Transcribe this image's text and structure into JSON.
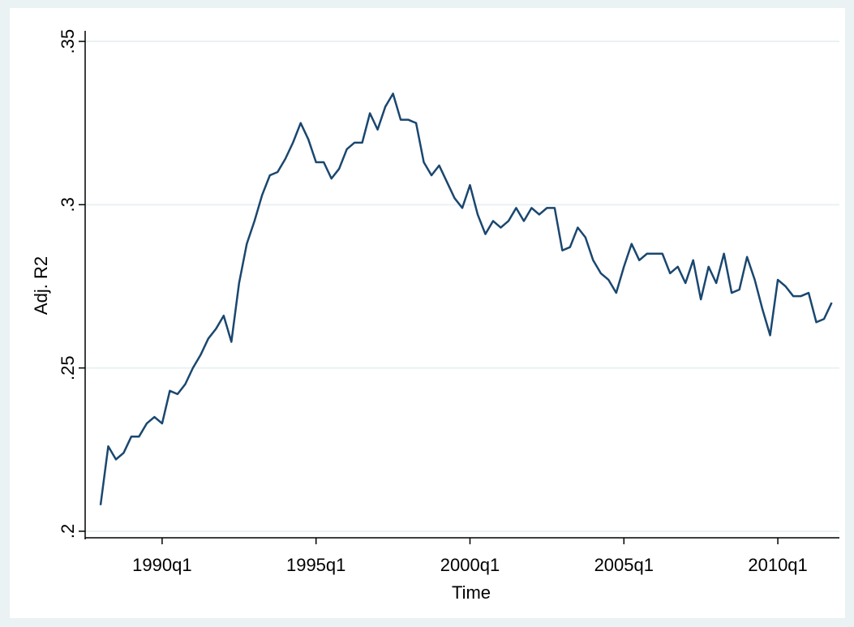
{
  "chart_data": {
    "type": "line",
    "x_label": "Time",
    "y_label": "Adj. R2",
    "x": [
      "1988q1",
      "1988q2",
      "1988q3",
      "1988q4",
      "1989q1",
      "1989q2",
      "1989q3",
      "1989q4",
      "1990q1",
      "1990q2",
      "1990q3",
      "1990q4",
      "1991q1",
      "1991q2",
      "1991q3",
      "1991q4",
      "1992q1",
      "1992q2",
      "1992q3",
      "1992q4",
      "1993q1",
      "1993q2",
      "1993q3",
      "1993q4",
      "1994q1",
      "1994q2",
      "1994q3",
      "1994q4",
      "1995q1",
      "1995q2",
      "1995q3",
      "1995q4",
      "1996q1",
      "1996q2",
      "1996q3",
      "1996q4",
      "1997q1",
      "1997q2",
      "1997q3",
      "1997q4",
      "1998q1",
      "1998q2",
      "1998q3",
      "1998q4",
      "1999q1",
      "1999q2",
      "1999q3",
      "1999q4",
      "2000q1",
      "2000q2",
      "2000q3",
      "2000q4",
      "2001q1",
      "2001q2",
      "2001q3",
      "2001q4",
      "2002q1",
      "2002q2",
      "2002q3",
      "2002q4",
      "2003q1",
      "2003q2",
      "2003q3",
      "2003q4",
      "2004q1",
      "2004q2",
      "2004q3",
      "2004q4",
      "2005q1",
      "2005q2",
      "2005q3",
      "2005q4",
      "2006q1",
      "2006q2",
      "2006q3",
      "2006q4",
      "2007q1",
      "2007q2",
      "2007q3",
      "2007q4",
      "2008q1",
      "2008q2",
      "2008q3",
      "2008q4",
      "2009q1",
      "2009q2",
      "2009q3",
      "2009q4",
      "2010q1",
      "2010q2",
      "2010q3",
      "2010q4",
      "2011q1",
      "2011q2",
      "2011q3",
      "2011q4"
    ],
    "series": [
      {
        "color": "#1a476f",
        "values": [
          0.208,
          0.226,
          0.222,
          0.224,
          0.229,
          0.229,
          0.233,
          0.235,
          0.233,
          0.243,
          0.242,
          0.245,
          0.25,
          0.254,
          0.259,
          0.262,
          0.266,
          0.258,
          0.276,
          0.288,
          0.295,
          0.303,
          0.309,
          0.31,
          0.314,
          0.319,
          0.325,
          0.32,
          0.313,
          0.313,
          0.308,
          0.311,
          0.317,
          0.319,
          0.319,
          0.328,
          0.323,
          0.33,
          0.334,
          0.326,
          0.326,
          0.325,
          0.313,
          0.309,
          0.312,
          0.307,
          0.302,
          0.299,
          0.306,
          0.297,
          0.291,
          0.295,
          0.293,
          0.295,
          0.299,
          0.295,
          0.299,
          0.297,
          0.299,
          0.299,
          0.286,
          0.287,
          0.293,
          0.29,
          0.283,
          0.279,
          0.277,
          0.273,
          0.281,
          0.288,
          0.283,
          0.285,
          0.285,
          0.285,
          0.279,
          0.281,
          0.276,
          0.283,
          0.271,
          0.281,
          0.276,
          0.285,
          0.273,
          0.274,
          0.284,
          0.277,
          0.268,
          0.26,
          0.277,
          0.275,
          0.272,
          0.272,
          0.273,
          0.264,
          0.265,
          0.27
        ]
      }
    ],
    "xlim": [
      "1987q3",
      "2012q1"
    ],
    "xticks": [
      "1990q1",
      "1995q1",
      "2000q1",
      "2005q1",
      "2010q1"
    ],
    "ylim": [
      0.198,
      0.352
    ],
    "yticks": [
      {
        "value": 0.2,
        "label": ".2"
      },
      {
        "value": 0.25,
        "label": ".25"
      },
      {
        "value": 0.3,
        "label": ".3"
      },
      {
        "value": 0.35,
        "label": ".35"
      }
    ],
    "grid": true
  }
}
